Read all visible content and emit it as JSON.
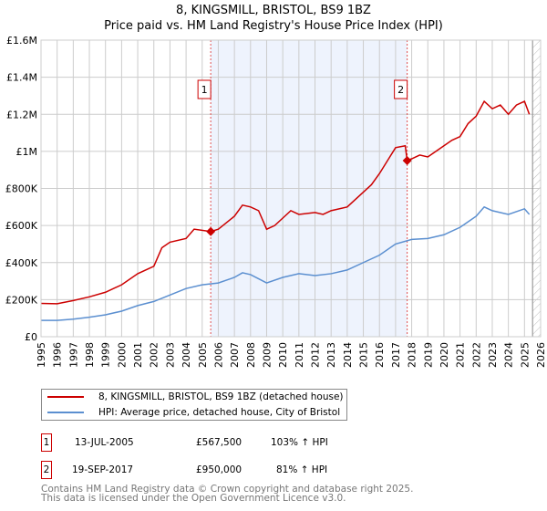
{
  "chart_data": {
    "type": "line",
    "title": "8, KINGSMILL, BRISTOL, BS9 1BZ",
    "subtitle": "Price paid vs. HM Land Registry's House Price Index (HPI)",
    "xlim": [
      1995,
      2026
    ],
    "ylim": [
      0,
      1600000
    ],
    "x_ticks": [
      "1995",
      "1996",
      "1997",
      "1998",
      "1999",
      "2000",
      "2001",
      "2002",
      "2003",
      "2004",
      "2005",
      "2006",
      "2007",
      "2008",
      "2009",
      "2010",
      "2011",
      "2012",
      "2013",
      "2014",
      "2015",
      "2016",
      "2017",
      "2018",
      "2019",
      "2020",
      "2021",
      "2022",
      "2023",
      "2024",
      "2025",
      "2026"
    ],
    "y_ticks": [
      {
        "v": 0,
        "label": "£0"
      },
      {
        "v": 200000,
        "label": "£200K"
      },
      {
        "v": 400000,
        "label": "£400K"
      },
      {
        "v": 600000,
        "label": "£600K"
      },
      {
        "v": 800000,
        "label": "£800K"
      },
      {
        "v": 1000000,
        "label": "£1M"
      },
      {
        "v": 1200000,
        "label": "£1.2M"
      },
      {
        "v": 1400000,
        "label": "£1.4M"
      },
      {
        "v": 1600000,
        "label": "£1.6M"
      }
    ],
    "grid": true,
    "shaded_range": [
      2005.53,
      2017.72
    ],
    "future_hatch_from": 2025.5,
    "series": [
      {
        "name": "8, KINGSMILL, BRISTOL, BS9 1BZ (detached house)",
        "color": "#cc0000",
        "x": [
          1995,
          1996,
          1997,
          1998,
          1999,
          2000,
          2001,
          2002,
          2002.5,
          2003,
          2004,
          2004.5,
          2005.53,
          2006,
          2007,
          2007.5,
          2008,
          2008.5,
          2009,
          2009.5,
          2010,
          2010.5,
          2011,
          2012,
          2012.5,
          2013,
          2014,
          2015,
          2015.5,
          2016,
          2016.5,
          2017,
          2017.6,
          2017.72,
          2018,
          2018.5,
          2019,
          2019.5,
          2020,
          2020.5,
          2021,
          2021.5,
          2022,
          2022.5,
          2023,
          2023.5,
          2024,
          2024.5,
          2025,
          2025.3
        ],
        "y": [
          180000,
          178000,
          195000,
          215000,
          240000,
          280000,
          340000,
          380000,
          480000,
          510000,
          530000,
          580000,
          567500,
          580000,
          650000,
          710000,
          700000,
          680000,
          580000,
          600000,
          640000,
          680000,
          660000,
          670000,
          660000,
          680000,
          700000,
          780000,
          820000,
          880000,
          950000,
          1020000,
          1030000,
          950000,
          960000,
          980000,
          970000,
          1000000,
          1030000,
          1060000,
          1080000,
          1150000,
          1190000,
          1270000,
          1230000,
          1250000,
          1200000,
          1250000,
          1270000,
          1200000
        ]
      },
      {
        "name": "HPI: Average price, detached house, City of Bristol",
        "color": "#5b8fd0",
        "x": [
          1995,
          1996,
          1997,
          1998,
          1999,
          2000,
          2001,
          2002,
          2003,
          2004,
          2005,
          2006,
          2007,
          2007.5,
          2008,
          2009,
          2010,
          2011,
          2012,
          2013,
          2014,
          2015,
          2016,
          2017,
          2018,
          2019,
          2020,
          2021,
          2022,
          2022.5,
          2023,
          2024,
          2025,
          2025.3
        ],
        "y": [
          88000,
          88000,
          95000,
          105000,
          118000,
          138000,
          168000,
          190000,
          225000,
          260000,
          280000,
          290000,
          320000,
          345000,
          335000,
          290000,
          320000,
          340000,
          330000,
          340000,
          360000,
          400000,
          440000,
          500000,
          525000,
          530000,
          550000,
          590000,
          650000,
          700000,
          680000,
          660000,
          690000,
          660000
        ]
      }
    ],
    "sales": [
      {
        "id": "1",
        "x": 2005.53,
        "price": 567500,
        "date": "13-JUL-2005",
        "price_label": "£567,500",
        "hpi": "103% ↑ HPI"
      },
      {
        "id": "2",
        "x": 2017.72,
        "price": 950000,
        "date": "19-SEP-2017",
        "price_label": "£950,000",
        "hpi": "81% ↑ HPI"
      }
    ]
  },
  "footer": {
    "line1": "Contains HM Land Registry data © Crown copyright and database right 2025.",
    "line2": "This data is licensed under the Open Government Licence v3.0."
  }
}
